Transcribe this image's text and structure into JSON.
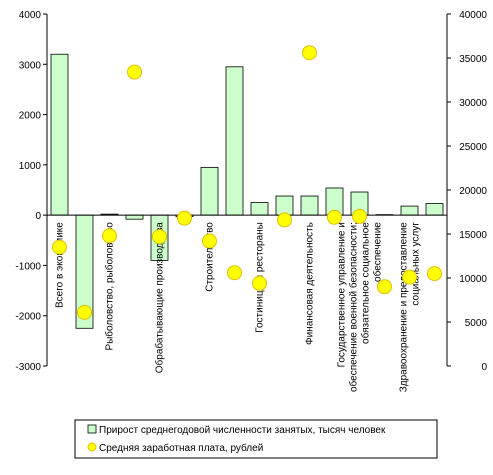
{
  "chart_data": {
    "type": "bar-scatter",
    "categories": [
      "Всего в экономике",
      null,
      "Рыболовство, рыболовство",
      null,
      "Обрабатывающие производства",
      null,
      "Строительство",
      null,
      "Гостиницы и рестораны",
      null,
      "Финансовая деятельность",
      null,
      "Государственное управление и\nобеспечение военной безопасности;\nобязательное социальное\nобеспечение",
      null,
      "Здравоохранение и предоставление\nсоциальных услуг",
      null
    ],
    "series": [
      {
        "name": "Прирост среднегодовой численности занятых, тысяч человек",
        "color": "#ccffcc",
        "values": [
          3200,
          -2250,
          20,
          -80,
          -900,
          -30,
          950,
          2950,
          250,
          380,
          380,
          540,
          460,
          10,
          180,
          230
        ]
      },
      {
        "name": "Средняя заработная плата, рублей",
        "color": "#ffff00",
        "axis": "y2",
        "values": [
          13500,
          6100,
          14800,
          33400,
          14700,
          16800,
          14200,
          10600,
          9400,
          16600,
          35600,
          16900,
          17000,
          9000,
          10100,
          10500
        ]
      }
    ],
    "ylim": [
      -3000,
      4000
    ],
    "yticks": [
      -3000,
      -2000,
      -1000,
      0,
      1000,
      2000,
      3000,
      4000
    ],
    "y2lim": [
      0,
      40000
    ],
    "y2ticks": [
      0,
      5000,
      10000,
      15000,
      20000,
      25000,
      30000,
      35000,
      40000
    ]
  }
}
